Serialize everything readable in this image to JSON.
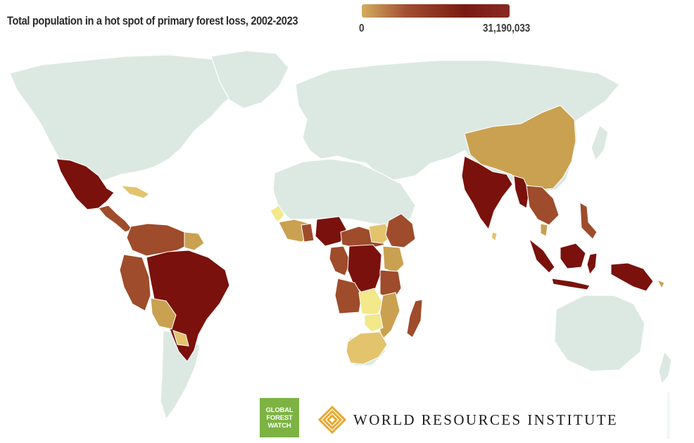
{
  "title": "Total population in a hot spot of primary forest loss, 2002-2023",
  "legend": {
    "min_label": "0",
    "max_label": "31,190,033",
    "colors": [
      "#d4ad5e",
      "#a24f33",
      "#7a1a12",
      "#8a2a22"
    ]
  },
  "colors": {
    "land_no_data": "#dce9e3",
    "class_1": "#f3e88a",
    "class_2": "#e3c46d",
    "class_3": "#c9a150",
    "class_4": "#9e4c2b",
    "class_5": "#7a110c",
    "gfw_badge": "#7cb342",
    "wri_logo": "#e8a72c"
  },
  "logos": {
    "gfw_line1": "GLOBAL",
    "gfw_line2": "FOREST",
    "gfw_line3": "WATCH",
    "wri_name": "WORLD RESOURCES INSTITUTE"
  }
}
